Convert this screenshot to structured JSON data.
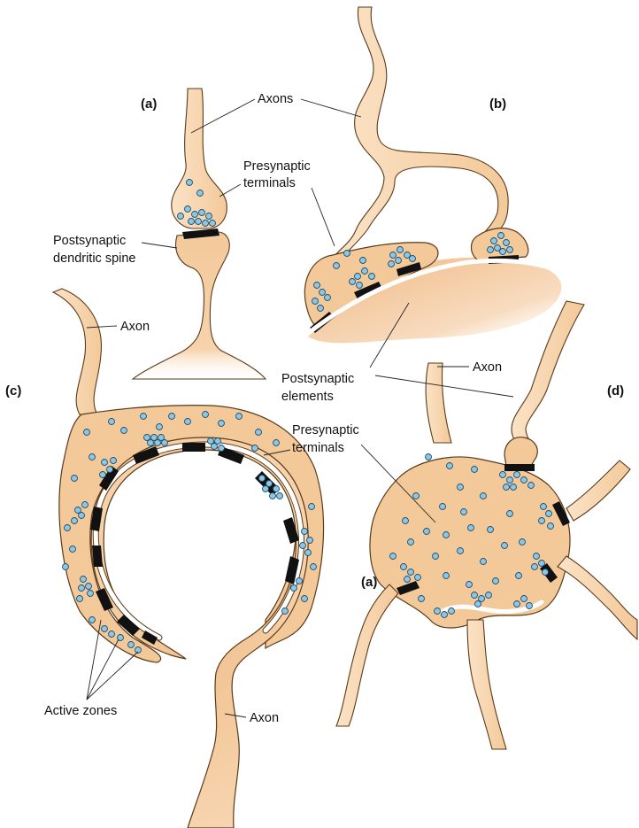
{
  "panels": {
    "a": "(a)",
    "b": "(b)",
    "c": "(c)",
    "d": "(d)",
    "d_inset": "(a)"
  },
  "labels": {
    "axons": "Axons",
    "presynaptic_terminals_a_line1": "Presynaptic",
    "presynaptic_terminals_a_line2": "terminals",
    "postsynaptic_spine_line1": "Postsynaptic",
    "postsynaptic_spine_line2": "dendritic spine",
    "axon_c_top": "Axon",
    "axon_d": "Axon",
    "postsynaptic_elements_line1": "Postsynaptic",
    "postsynaptic_elements_line2": "elements",
    "presynaptic_terminals_c_line1": "Presynaptic",
    "presynaptic_terminals_c_line2": "terminals",
    "active_zones": "Active zones",
    "axon_c_bottom": "Axon"
  },
  "colors": {
    "cell_fill": "#f3c99a",
    "cell_fill_dark": "#e9b07a",
    "vesicle": "#8fc6e2",
    "active_zone": "#111111",
    "outline": "#5a3a1a"
  }
}
